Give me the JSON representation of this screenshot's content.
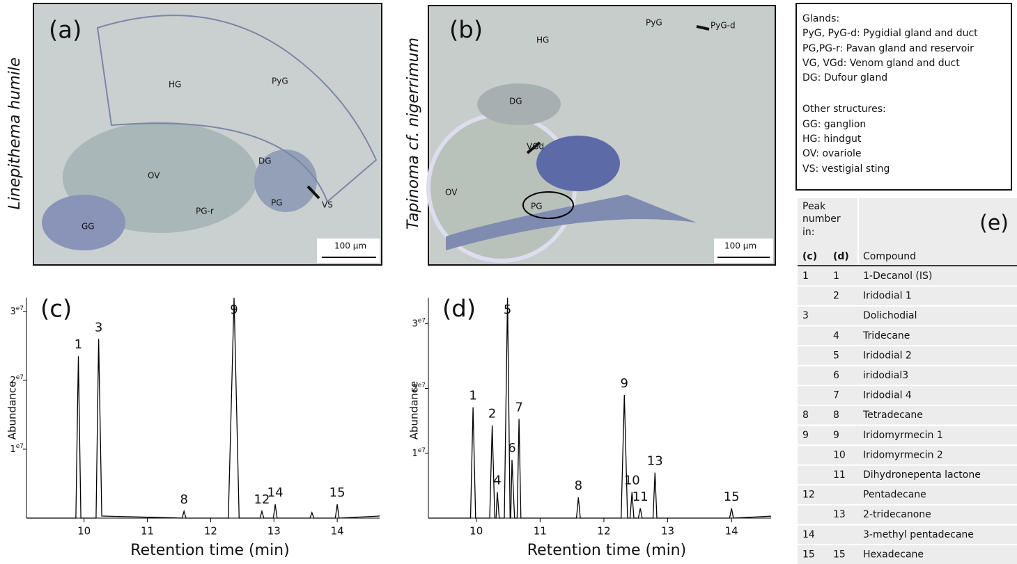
{
  "panel_a": {
    "letter": "(a)",
    "species": "Linepithema humile",
    "labels": [
      "PyG",
      "HG",
      "OV",
      "DG",
      "PG-r",
      "PG",
      "VS",
      "GG"
    ],
    "scale": "100 μm"
  },
  "panel_b": {
    "letter": "(b)",
    "species": "Tapinoma cf. nigerrimum",
    "labels": [
      "PyG",
      "PyG-d",
      "HG",
      "DG",
      "VGd",
      "OV",
      "PG"
    ],
    "scale": "100 μm"
  },
  "legend": {
    "glands_title": "Glands:",
    "glands": [
      "PyG, PyG-d: Pygidial gland and duct",
      "PG,PG-r: Pavan gland and reservoir",
      "VG, VGd: Venom gland and duct",
      "DG: Dufour gland"
    ],
    "other_title": "Other structures:",
    "other": [
      "GG: ganglion",
      "HG: hindgut",
      "OV: ovariole",
      "VS: vestigial sting"
    ]
  },
  "chart_data": [
    {
      "type": "line",
      "title": "(c)",
      "y_label": "Abundance",
      "x_label": "Retention time (min)",
      "xlim": [
        9.09,
        14.67
      ],
      "xticks": [
        10,
        11,
        12,
        13,
        14
      ],
      "ylim": [
        0,
        32000000
      ],
      "yticks": [
        {
          "value": 10000000,
          "label": "1e7"
        },
        {
          "value": 20000000,
          "label": "2e7"
        },
        {
          "value": 30000000,
          "label": "3e7"
        }
      ],
      "series": [
        {
          "color": "#000000",
          "x": [
            9.09,
            9.87,
            9.91,
            9.95,
            10.19,
            10.23,
            10.28,
            11.55,
            11.58,
            11.61,
            12.28,
            12.37,
            12.45,
            12.78,
            12.81,
            12.84,
            12.99,
            13.02,
            13.05,
            13.57,
            13.6,
            13.63,
            13.97,
            14.0,
            14.03,
            14.67
          ],
          "values": [
            0,
            0,
            23500000,
            0,
            0,
            26000000,
            300000,
            0,
            1000000,
            0,
            0,
            32000000,
            0,
            0,
            1000000,
            0,
            0,
            2000000,
            0,
            0,
            800000,
            0,
            0,
            2000000,
            0,
            300000
          ]
        }
      ],
      "annotations": [
        {
          "text": "1",
          "x": 9.91
        },
        {
          "text": "3",
          "x": 10.23
        },
        {
          "text": "8",
          "x": 11.58
        },
        {
          "text": "9",
          "x": 12.37
        },
        {
          "text": "12",
          "x": 12.81
        },
        {
          "text": "14",
          "x": 13.02
        },
        {
          "text": "15",
          "x": 14.0
        }
      ]
    },
    {
      "type": "line",
      "title": "(d)",
      "y_label": "Abundance",
      "x_label": "Retention time (min)",
      "xlim": [
        9.25,
        14.62
      ],
      "xticks": [
        10,
        11,
        12,
        13,
        14
      ],
      "ylim": [
        0,
        34000000
      ],
      "yticks": [
        {
          "value": 10000000,
          "label": "1e7"
        },
        {
          "value": 20000000,
          "label": "2e7"
        },
        {
          "value": 30000000,
          "label": "3e7"
        }
      ],
      "series": [
        {
          "color": "#000000",
          "x": [
            9.25,
            9.91,
            9.95,
            9.99,
            10.21,
            10.25,
            10.29,
            10.31,
            10.33,
            10.36,
            10.44,
            10.49,
            10.53,
            10.54,
            10.56,
            10.6,
            10.64,
            10.67,
            10.7,
            11.57,
            11.6,
            11.63,
            12.27,
            12.32,
            12.37,
            12.41,
            12.44,
            12.47,
            12.54,
            12.57,
            12.6,
            12.77,
            12.8,
            12.83,
            13.97,
            14.0,
            14.03,
            14.62
          ],
          "values": [
            0,
            0,
            17100000,
            0,
            0,
            14300000,
            0,
            0,
            4000000,
            0,
            0,
            34000000,
            0,
            0,
            9000000,
            0,
            0,
            15300000,
            0,
            0,
            3200000,
            0,
            0,
            19000000,
            0,
            0,
            4000000,
            0,
            0,
            1500000,
            0,
            0,
            7000000,
            0,
            0,
            1500000,
            0,
            300000
          ]
        }
      ],
      "annotations": [
        {
          "text": "1",
          "x": 9.95
        },
        {
          "text": "2",
          "x": 10.25
        },
        {
          "text": "4",
          "x": 10.33
        },
        {
          "text": "5",
          "x": 10.49
        },
        {
          "text": "6",
          "x": 10.56
        },
        {
          "text": "7",
          "x": 10.67
        },
        {
          "text": "8",
          "x": 11.6
        },
        {
          "text": "9",
          "x": 12.32
        },
        {
          "text": "10",
          "x": 12.44
        },
        {
          "text": "11",
          "x": 12.57
        },
        {
          "text": "13",
          "x": 12.8
        },
        {
          "text": "15",
          "x": 14.0
        }
      ]
    }
  ],
  "table": {
    "header": {
      "peak_number": [
        "Peak",
        "number",
        "in:"
      ],
      "panel": "(e)",
      "col_c": "(c)",
      "col_d": "(d)",
      "col_compound": "Compound"
    },
    "rows": [
      {
        "c": "1",
        "d": "1",
        "compound": "1-Decanol (IS)"
      },
      {
        "d": "2",
        "compound": "Iridodial 1"
      },
      {
        "c": "3",
        "compound": "Dolichodial"
      },
      {
        "d": "4",
        "compound": "Tridecane"
      },
      {
        "d": "5",
        "compound": "Iridodial 2"
      },
      {
        "d": "6",
        "compound": "iridodial3"
      },
      {
        "d": "7",
        "compound": "Iridodial 4"
      },
      {
        "c": "8",
        "d": "8",
        "compound": "Tetradecane"
      },
      {
        "c": "9",
        "d": "9",
        "compound": "Iridomyrmecin 1"
      },
      {
        "d": "10",
        "compound": "Iridomyrmecin 2"
      },
      {
        "d": "11",
        "compound": "Dihydronepenta lactone"
      },
      {
        "c": "12",
        "compound": "Pentadecane"
      },
      {
        "d": "13",
        "compound": "2-tridecanone"
      },
      {
        "c": "14",
        "compound": "3-methyl pentadecane"
      },
      {
        "c": "15",
        "d": "15",
        "compound": "Hexadecane"
      }
    ]
  }
}
